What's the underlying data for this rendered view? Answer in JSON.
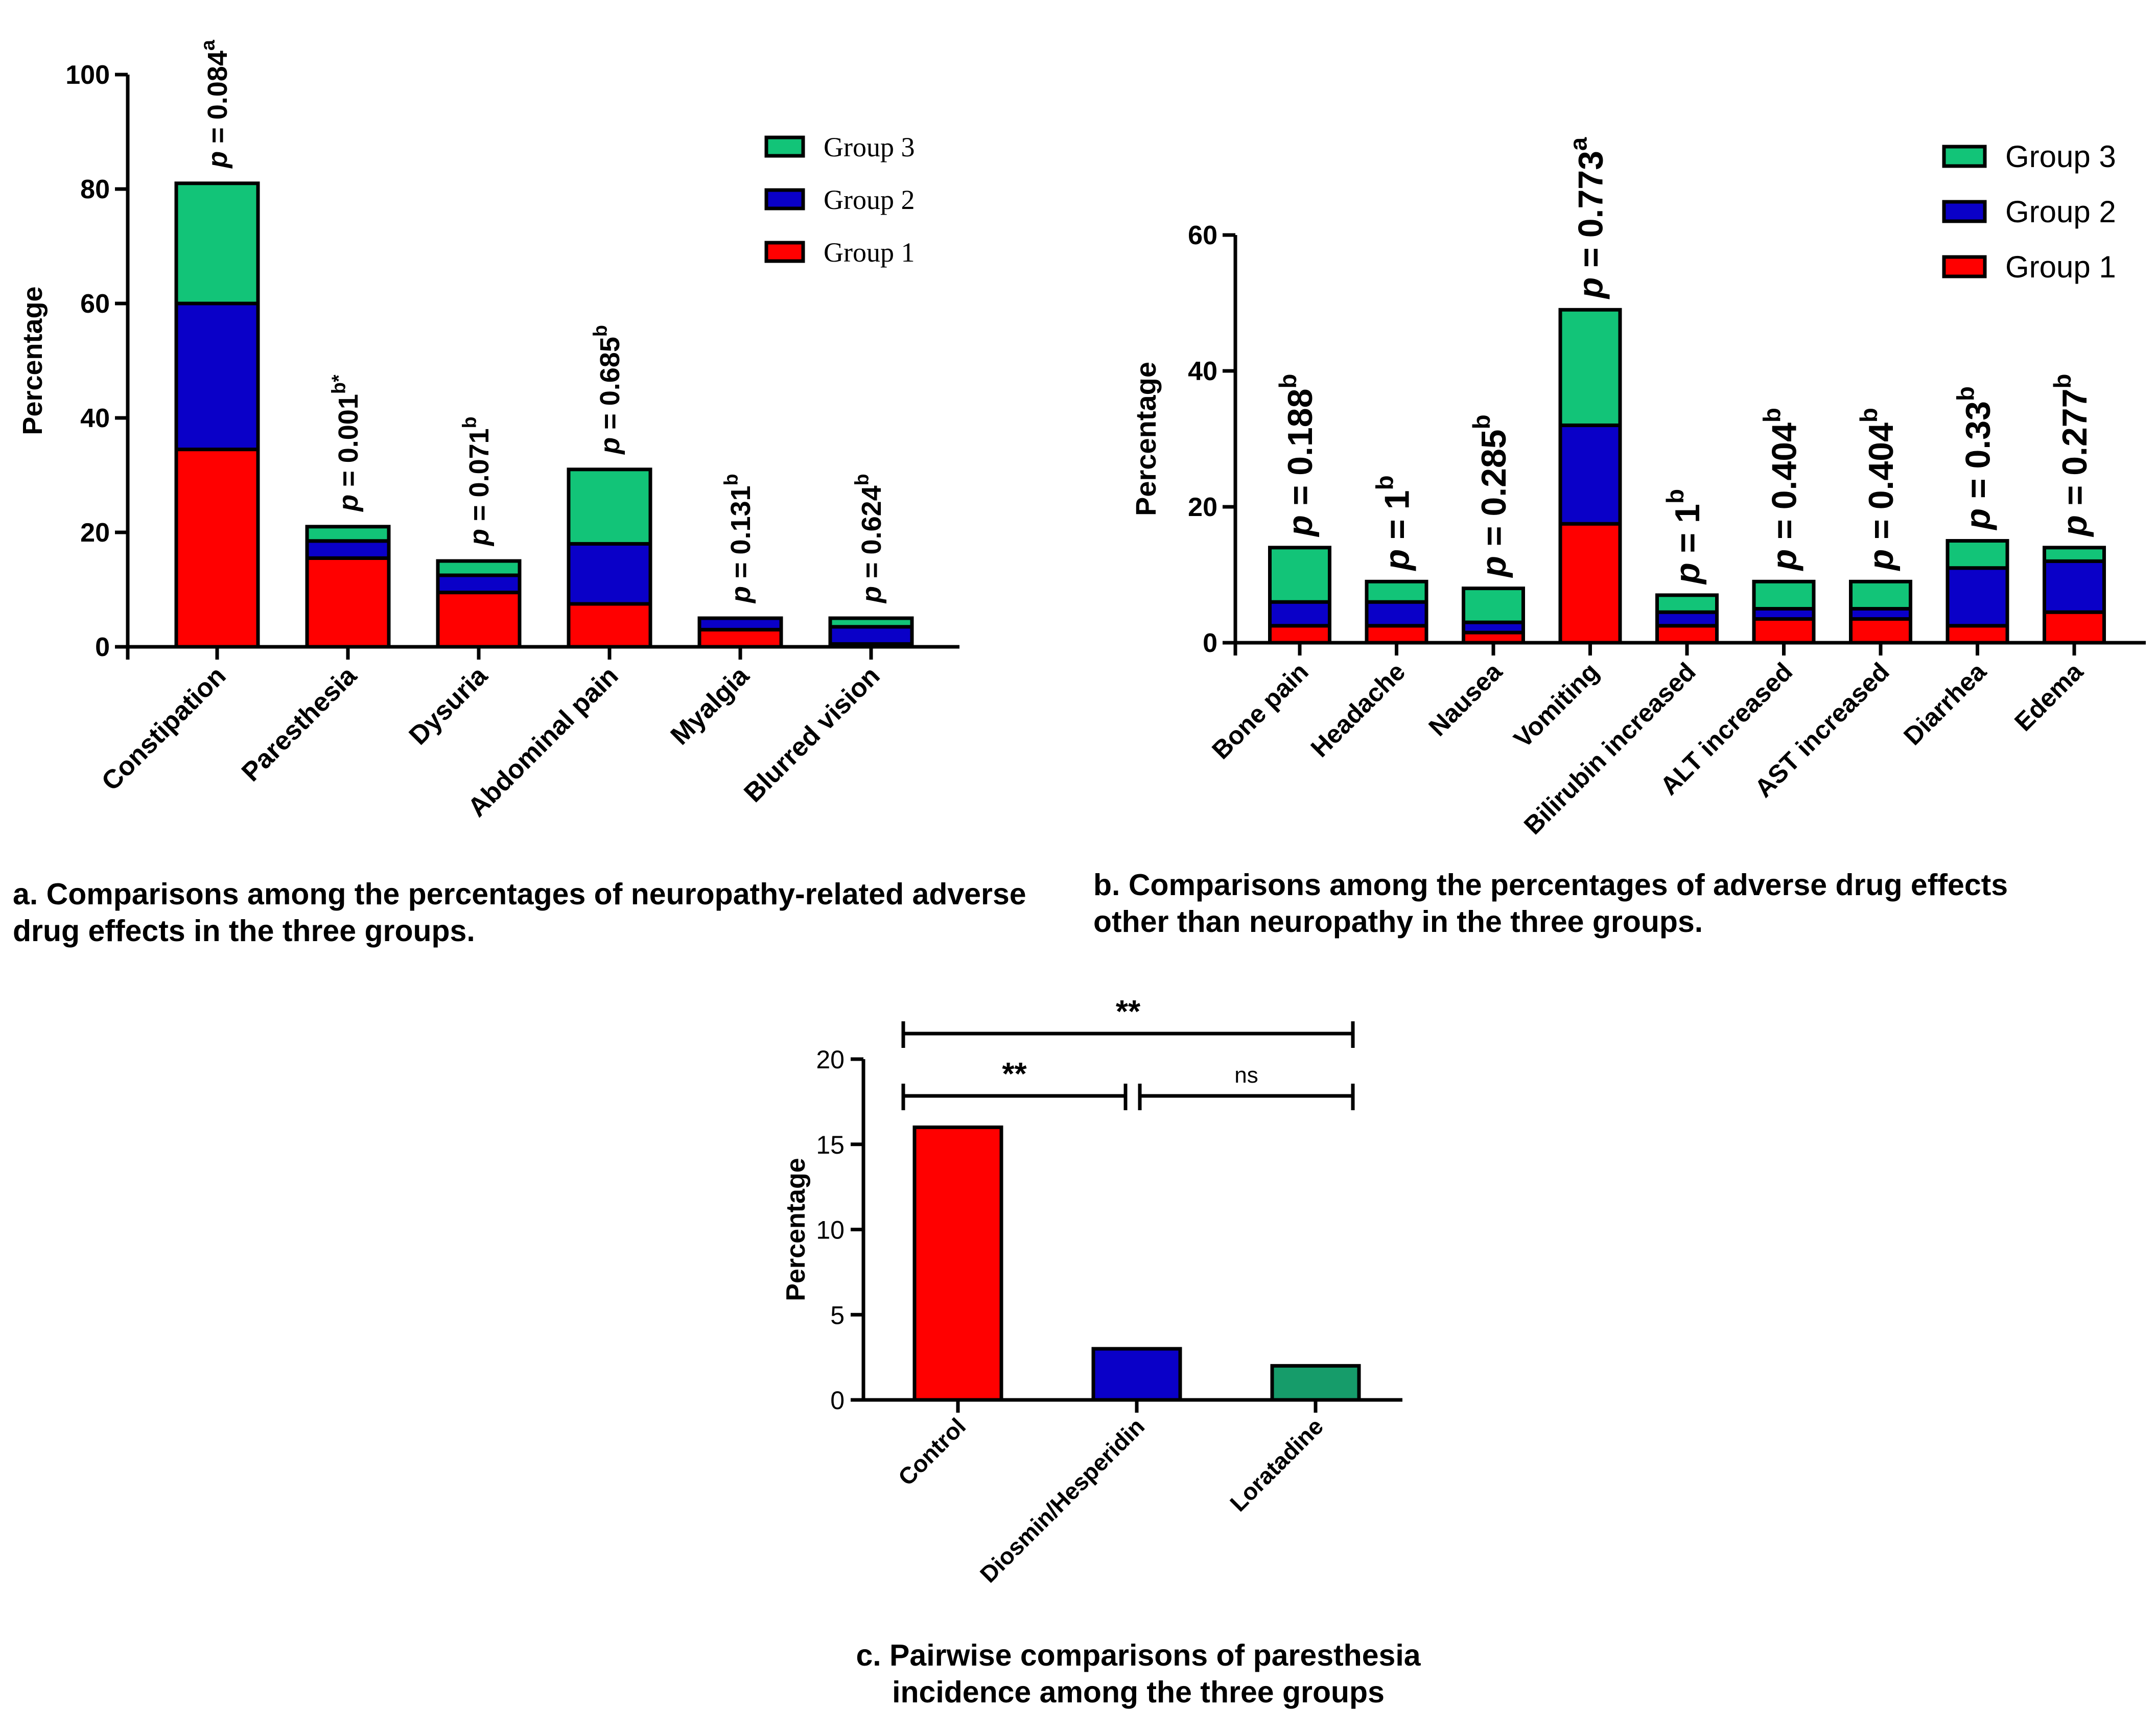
{
  "colors": {
    "group1": "#ff0000",
    "group2": "#0a00c8",
    "group3": "#12c478",
    "panel_c_green": "#169c6a",
    "axis": "#000000"
  },
  "chart_data": [
    {
      "id": "a",
      "type": "bar",
      "stacked": true,
      "ylabel": "Percentage",
      "ylim": [
        0,
        100
      ],
      "yticks": [
        "0",
        "20",
        "40",
        "60",
        "80",
        "100"
      ],
      "categories": [
        "Constipation",
        "Paresthesia",
        "Dysuria",
        "Abdominal pain",
        "Myalgia",
        "Blurred vision"
      ],
      "series": [
        {
          "name": "Group 1",
          "values": [
            34.5,
            15.5,
            9.5,
            7.5,
            3,
            0.5
          ]
        },
        {
          "name": "Group 2",
          "values": [
            25.5,
            3,
            3,
            10.5,
            2,
            3
          ]
        },
        {
          "name": "Group 3",
          "values": [
            21,
            2.5,
            2.5,
            13,
            0,
            1.5
          ]
        }
      ],
      "legend": [
        "Group 3",
        "Group 2",
        "Group 1"
      ],
      "legend_position": "top-right",
      "annotations": [
        {
          "prefix": "p",
          "text": " = 0.084",
          "sup": "a"
        },
        {
          "prefix": "p",
          "text": " = 0.001",
          "sup": "b*"
        },
        {
          "prefix": "p",
          "text": " = 0.071",
          "sup": "b"
        },
        {
          "prefix": "p",
          "text": " = 0.685",
          "sup": "b"
        },
        {
          "prefix": "p",
          "text": " = 0.131",
          "sup": "b"
        },
        {
          "prefix": "p",
          "text": " = 0.624",
          "sup": "b"
        }
      ],
      "caption": [
        "a. Comparisons among the percentages of neuropathy-related adverse",
        "drug effects in the three groups."
      ]
    },
    {
      "id": "b",
      "type": "bar",
      "stacked": true,
      "ylabel": "Percentage",
      "ylim": [
        0,
        60
      ],
      "yticks": [
        "0",
        "20",
        "40",
        "60"
      ],
      "categories": [
        "Bone pain",
        "Headache",
        "Nausea",
        "Vomiting",
        "Bilirubin increased",
        "ALT increased",
        "AST increased",
        "Diarrhea",
        "Edema"
      ],
      "series": [
        {
          "name": "Group 1",
          "values": [
            2.5,
            2.5,
            1.5,
            17.5,
            2.5,
            3.5,
            3.5,
            2.5,
            4.5
          ]
        },
        {
          "name": "Group 2",
          "values": [
            3.5,
            3.5,
            1.5,
            14.5,
            2,
            1.5,
            1.5,
            8.5,
            7.5
          ]
        },
        {
          "name": "Group 3",
          "values": [
            8,
            3,
            5,
            17,
            2.5,
            4,
            4,
            4,
            2
          ]
        }
      ],
      "legend": [
        "Group 3",
        "Group 2",
        "Group 1"
      ],
      "legend_position": "top-right",
      "annotations": [
        {
          "prefix": "p",
          "text": " = 0.188",
          "sup": "b"
        },
        {
          "prefix": "p",
          "text": " = 1",
          "sup": "b"
        },
        {
          "prefix": "p",
          "text": " = 0.285",
          "sup": "b"
        },
        {
          "prefix": "p",
          "text": " = 0.773",
          "sup": "a"
        },
        {
          "prefix": "p",
          "text": " = 1",
          "sup": "b"
        },
        {
          "prefix": "p",
          "text": " = 0.404",
          "sup": "b"
        },
        {
          "prefix": "p",
          "text": " = 0.404",
          "sup": "b"
        },
        {
          "prefix": "p",
          "text": " = 0.33",
          "sup": "b"
        },
        {
          "prefix": "p",
          "text": " = 0.277",
          "sup": "b"
        }
      ],
      "caption": [
        "b. Comparisons among the percentages of  adverse drug effects",
        "other than neuropathy in the three groups."
      ]
    },
    {
      "id": "c",
      "type": "bar",
      "stacked": false,
      "ylabel": "Percentage",
      "ylim": [
        0,
        20
      ],
      "yticks": [
        "0",
        "5",
        "10",
        "15",
        "20"
      ],
      "categories": [
        "Control",
        "Diosmin/Hesperidin",
        "Loratadine"
      ],
      "values": [
        16,
        3,
        2
      ],
      "significance": [
        {
          "from": "Control",
          "to": "Diosmin/Hesperidin",
          "label": "**"
        },
        {
          "from": "Diosmin/Hesperidin",
          "to": "Loratadine",
          "label": "ns"
        },
        {
          "from": "Control",
          "to": "Loratadine",
          "label": "**"
        }
      ],
      "caption": [
        "c. Pairwise comparisons of paresthesia",
        "incidence among the three groups"
      ]
    }
  ]
}
